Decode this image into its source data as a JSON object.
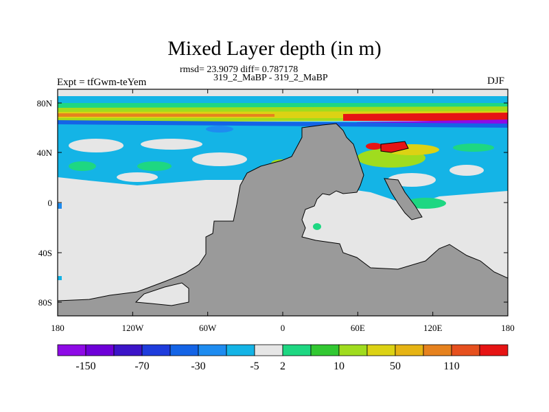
{
  "title": "Mixed Layer depth (in m)",
  "stats": "rmsd= 23.9079 diff= 0.787178",
  "subtitle": "319_2_MaBP - 319_2_MaBP",
  "experiment": "Expt = tfGwm-teYem",
  "season": "DJF",
  "latitude_labels": [
    "80N",
    "40N",
    "0",
    "40S",
    "80S"
  ],
  "longitude_labels": [
    "180",
    "120W",
    "60W",
    "0",
    "60E",
    "120E",
    "180"
  ],
  "colorbar": {
    "colors": [
      "#8e0ae6",
      "#6e00d8",
      "#3c14c8",
      "#1e3cdc",
      "#1464e6",
      "#1e8cf0",
      "#14b4e6",
      "#e6e6e6",
      "#1ed782",
      "#32c832",
      "#a0dc1e",
      "#dcd214",
      "#e6b414",
      "#e6821e",
      "#e6501e",
      "#e61414"
    ],
    "labels": [
      "-150",
      "-70",
      "-30",
      "-5",
      "2",
      "10",
      "50",
      "110"
    ],
    "label_positions_after_box": [
      1,
      3,
      5,
      7,
      8,
      10,
      12,
      14
    ]
  },
  "colors": {
    "land": "#9a9a9a",
    "ocean_neutral": "#e6e6e6"
  }
}
